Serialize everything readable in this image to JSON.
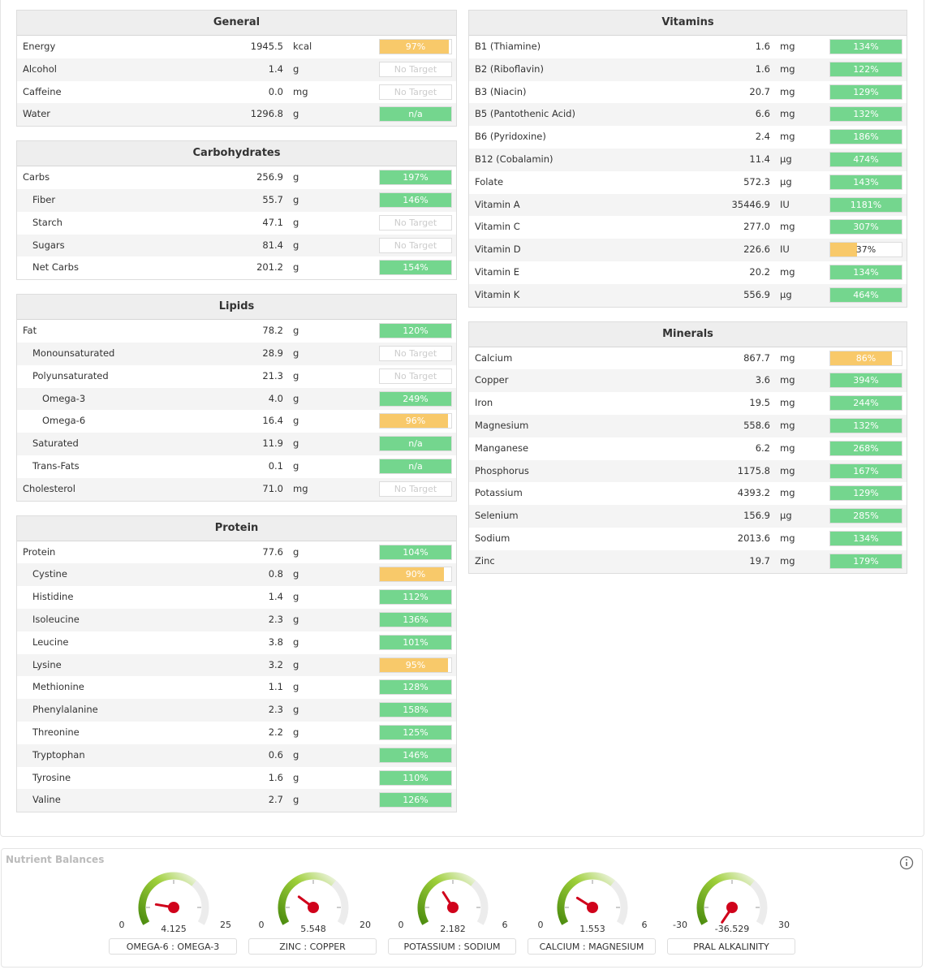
{
  "sections": [
    {
      "title": "General",
      "rows": [
        {
          "name": "Energy",
          "amount": "1945.5",
          "unit": "kcal",
          "target": "97%",
          "fill": 97,
          "bar_color": "#f8c96a"
        },
        {
          "name": "Alcohol",
          "amount": "1.4",
          "unit": "g",
          "target": "No Target"
        },
        {
          "name": "Caffeine",
          "amount": "0.0",
          "unit": "mg",
          "target": "No Target"
        },
        {
          "name": "Water",
          "amount": "1296.8",
          "unit": "g",
          "target": "n/a",
          "bar_color": "#74d68e"
        }
      ]
    },
    {
      "title": "Carbohydrates",
      "rows": [
        {
          "name": "Carbs",
          "amount": "256.9",
          "unit": "g",
          "target": "197%",
          "fill": 197,
          "bar_color": "#74d68e",
          "children": [
            {
              "name": "Fiber",
              "amount": "55.7",
              "unit": "g",
              "target": "146%",
              "fill": 146,
              "bar_color": "#74d68e"
            },
            {
              "name": "Starch",
              "amount": "47.1",
              "unit": "g",
              "target": "No Target"
            },
            {
              "name": "Sugars",
              "amount": "81.4",
              "unit": "g",
              "target": "No Target"
            },
            {
              "name": "Net Carbs",
              "amount": "201.2",
              "unit": "g",
              "target": "154%",
              "fill": 154,
              "bar_color": "#74d68e"
            }
          ]
        }
      ]
    },
    {
      "title": "Lipids",
      "rows": [
        {
          "name": "Fat",
          "amount": "78.2",
          "unit": "g",
          "target": "120%",
          "fill": 120,
          "bar_color": "#74d68e",
          "children": [
            {
              "name": "Monounsaturated",
              "amount": "28.9",
              "unit": "g",
              "target": "No Target"
            },
            {
              "name": "Polyunsaturated",
              "amount": "21.3",
              "unit": "g",
              "target": "No Target",
              "children": [
                {
                  "name": "Omega-3",
                  "amount": "4.0",
                  "unit": "g",
                  "target": "249%",
                  "fill": 249,
                  "bar_color": "#74d68e"
                },
                {
                  "name": "Omega-6",
                  "amount": "16.4",
                  "unit": "g",
                  "target": "96%",
                  "fill": 96,
                  "bar_color": "#f8c96a"
                }
              ]
            },
            {
              "name": "Saturated",
              "amount": "11.9",
              "unit": "g",
              "target": "n/a",
              "bar_color": "#74d68e"
            },
            {
              "name": "Trans-Fats",
              "amount": "0.1",
              "unit": "g",
              "target": "n/a",
              "bar_color": "#74d68e"
            }
          ]
        },
        {
          "name": "Cholesterol",
          "amount": "71.0",
          "unit": "mg",
          "target": "No Target"
        }
      ]
    },
    {
      "title": "Protein",
      "rows": [
        {
          "name": "Protein",
          "amount": "77.6",
          "unit": "g",
          "target": "104%",
          "fill": 104,
          "bar_color": "#74d68e",
          "children": [
            {
              "name": "Cystine",
              "amount": "0.8",
              "unit": "g",
              "target": "90%",
              "fill": 90,
              "bar_color": "#f8c96a"
            },
            {
              "name": "Histidine",
              "amount": "1.4",
              "unit": "g",
              "target": "112%",
              "fill": 112,
              "bar_color": "#74d68e"
            },
            {
              "name": "Isoleucine",
              "amount": "2.3",
              "unit": "g",
              "target": "136%",
              "fill": 136,
              "bar_color": "#74d68e"
            },
            {
              "name": "Leucine",
              "amount": "3.8",
              "unit": "g",
              "target": "101%",
              "fill": 101,
              "bar_color": "#74d68e"
            },
            {
              "name": "Lysine",
              "amount": "3.2",
              "unit": "g",
              "target": "95%",
              "fill": 95,
              "bar_color": "#f8c96a"
            },
            {
              "name": "Methionine",
              "amount": "1.1",
              "unit": "g",
              "target": "128%",
              "fill": 128,
              "bar_color": "#74d68e"
            },
            {
              "name": "Phenylalanine",
              "amount": "2.3",
              "unit": "g",
              "target": "158%",
              "fill": 158,
              "bar_color": "#74d68e"
            },
            {
              "name": "Threonine",
              "amount": "2.2",
              "unit": "g",
              "target": "125%",
              "fill": 125,
              "bar_color": "#74d68e"
            },
            {
              "name": "Tryptophan",
              "amount": "0.6",
              "unit": "g",
              "target": "146%",
              "fill": 146,
              "bar_color": "#74d68e"
            },
            {
              "name": "Tyrosine",
              "amount": "1.6",
              "unit": "g",
              "target": "110%",
              "fill": 110,
              "bar_color": "#74d68e"
            },
            {
              "name": "Valine",
              "amount": "2.7",
              "unit": "g",
              "target": "126%",
              "fill": 126,
              "bar_color": "#74d68e"
            }
          ]
        }
      ]
    },
    {
      "title": "Vitamins",
      "rows": [
        {
          "name": "B1 (Thiamine)",
          "amount": "1.6",
          "unit": "mg",
          "target": "134%",
          "fill": 134,
          "bar_color": "#74d68e"
        },
        {
          "name": "B2 (Riboflavin)",
          "amount": "1.6",
          "unit": "mg",
          "target": "122%",
          "fill": 122,
          "bar_color": "#74d68e"
        },
        {
          "name": "B3 (Niacin)",
          "amount": "20.7",
          "unit": "mg",
          "target": "129%",
          "fill": 129,
          "bar_color": "#74d68e"
        },
        {
          "name": "B5 (Pantothenic Acid)",
          "amount": "6.6",
          "unit": "mg",
          "target": "132%",
          "fill": 132,
          "bar_color": "#74d68e"
        },
        {
          "name": "B6 (Pyridoxine)",
          "amount": "2.4",
          "unit": "mg",
          "target": "186%",
          "fill": 186,
          "bar_color": "#74d68e"
        },
        {
          "name": "B12 (Cobalamin)",
          "amount": "11.4",
          "unit": "µg",
          "target": "474%",
          "fill": 474,
          "bar_color": "#74d68e"
        },
        {
          "name": "Folate",
          "amount": "572.3",
          "unit": "µg",
          "target": "143%",
          "fill": 143,
          "bar_color": "#74d68e"
        },
        {
          "name": "Vitamin A",
          "amount": "35446.9",
          "unit": "IU",
          "target": "1181%",
          "fill": 1181,
          "bar_color": "#74d68e"
        },
        {
          "name": "Vitamin C",
          "amount": "277.0",
          "unit": "mg",
          "target": "307%",
          "fill": 307,
          "bar_color": "#74d68e"
        },
        {
          "name": "Vitamin D",
          "amount": "226.6",
          "unit": "IU",
          "target": "37%",
          "fill": 37,
          "bar_color": "#f8c96a"
        },
        {
          "name": "Vitamin E",
          "amount": "20.2",
          "unit": "mg",
          "target": "134%",
          "fill": 134,
          "bar_color": "#74d68e"
        },
        {
          "name": "Vitamin K",
          "amount": "556.9",
          "unit": "µg",
          "target": "464%",
          "fill": 464,
          "bar_color": "#74d68e"
        }
      ]
    },
    {
      "title": "Minerals",
      "rows": [
        {
          "name": "Calcium",
          "amount": "867.7",
          "unit": "mg",
          "target": "86%",
          "fill": 86,
          "bar_color": "#f8c96a"
        },
        {
          "name": "Copper",
          "amount": "3.6",
          "unit": "mg",
          "target": "394%",
          "fill": 394,
          "bar_color": "#74d68e"
        },
        {
          "name": "Iron",
          "amount": "19.5",
          "unit": "mg",
          "target": "244%",
          "fill": 244,
          "bar_color": "#74d68e"
        },
        {
          "name": "Magnesium",
          "amount": "558.6",
          "unit": "mg",
          "target": "132%",
          "fill": 132,
          "bar_color": "#74d68e"
        },
        {
          "name": "Manganese",
          "amount": "6.2",
          "unit": "mg",
          "target": "268%",
          "fill": 268,
          "bar_color": "#74d68e"
        },
        {
          "name": "Phosphorus",
          "amount": "1175.8",
          "unit": "mg",
          "target": "167%",
          "fill": 167,
          "bar_color": "#74d68e"
        },
        {
          "name": "Potassium",
          "amount": "4393.2",
          "unit": "mg",
          "target": "129%",
          "fill": 129,
          "bar_color": "#74d68e"
        },
        {
          "name": "Selenium",
          "amount": "156.9",
          "unit": "µg",
          "target": "285%",
          "fill": 285,
          "bar_color": "#74d68e"
        },
        {
          "name": "Sodium",
          "amount": "2013.6",
          "unit": "mg",
          "target": "134%",
          "fill": 134,
          "bar_color": "#74d68e"
        },
        {
          "name": "Zinc",
          "amount": "19.7",
          "unit": "mg",
          "target": "179%",
          "fill": 179,
          "bar_color": "#74d68e"
        }
      ]
    }
  ],
  "balances": {
    "title": "Nutrient Balances",
    "gauges": [
      {
        "label": "OMEGA-6 : OMEGA-3",
        "min": 0,
        "max": 25,
        "value": 4.125
      },
      {
        "label": "ZINC : COPPER",
        "min": 0,
        "max": 20,
        "value": 5.548
      },
      {
        "label": "POTASSIUM : SODIUM",
        "min": 0,
        "max": 6,
        "value": 2.182
      },
      {
        "label": "CALCIUM : MAGNESIUM",
        "min": 0,
        "max": 6,
        "value": 1.553
      },
      {
        "label": "PRAL ALKALINITY",
        "min": -30,
        "max": 30,
        "value": -36.529
      }
    ]
  }
}
